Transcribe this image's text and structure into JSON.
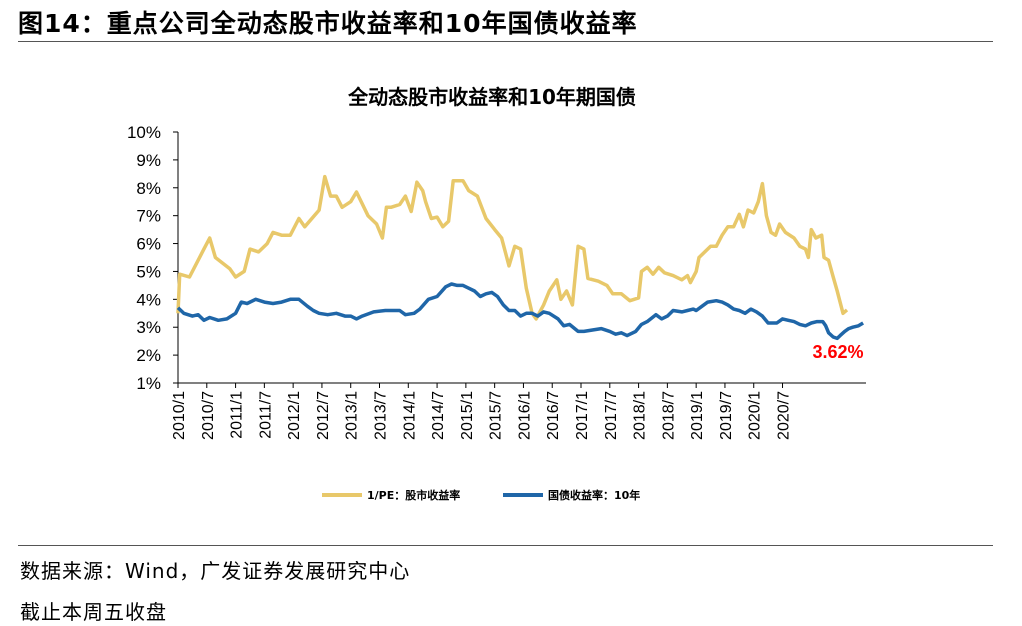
{
  "header": {
    "figure_title": "图14：重点公司全动态股市收益率和10年国债收益率"
  },
  "footer": {
    "source": "数据来源：Wind，广发证券发展研究中心",
    "note": "截止本周五收盘"
  },
  "chart_data": {
    "type": "line",
    "title": "全动态股市收益率和10年期国债",
    "ylim": [
      1,
      10
    ],
    "y_ticks": [
      "10%",
      "9%",
      "8%",
      "7%",
      "6%",
      "5%",
      "4%",
      "3%",
      "2%",
      "1%"
    ],
    "x_ticks": [
      "2010/1",
      "2010/7",
      "2011/1",
      "2011/7",
      "2012/1",
      "2012/7",
      "2013/1",
      "2013/7",
      "2014/1",
      "2014/7",
      "2015/1",
      "2015/7",
      "2016/1",
      "2016/7",
      "2017/1",
      "2017/7",
      "2018/1",
      "2018/7",
      "2019/1",
      "2019/7",
      "2020/1",
      "2020/7"
    ],
    "legend_position": "bottom",
    "annotation": {
      "text": "3.62%",
      "color": "#ff0000"
    },
    "series": [
      {
        "name": "1/PE：股市收益率",
        "color": "#e8c86a",
        "points": [
          [
            2010.0,
            3.5
          ],
          [
            2010.03,
            4.9
          ],
          [
            2010.2,
            4.8
          ],
          [
            2010.45,
            5.8
          ],
          [
            2010.55,
            6.2
          ],
          [
            2010.65,
            5.5
          ],
          [
            2010.9,
            5.1
          ],
          [
            2011.0,
            4.8
          ],
          [
            2011.15,
            5.0
          ],
          [
            2011.25,
            5.8
          ],
          [
            2011.4,
            5.7
          ],
          [
            2011.55,
            6.0
          ],
          [
            2011.65,
            6.4
          ],
          [
            2011.8,
            6.3
          ],
          [
            2011.95,
            6.3
          ],
          [
            2012.1,
            6.9
          ],
          [
            2012.2,
            6.6
          ],
          [
            2012.45,
            7.2
          ],
          [
            2012.55,
            8.4
          ],
          [
            2012.65,
            7.7
          ],
          [
            2012.75,
            7.7
          ],
          [
            2012.85,
            7.3
          ],
          [
            2013.0,
            7.5
          ],
          [
            2013.1,
            7.85
          ],
          [
            2013.3,
            7.0
          ],
          [
            2013.45,
            6.7
          ],
          [
            2013.55,
            6.2
          ],
          [
            2013.62,
            7.3
          ],
          [
            2013.7,
            7.3
          ],
          [
            2013.85,
            7.4
          ],
          [
            2013.95,
            7.7
          ],
          [
            2014.05,
            7.15
          ],
          [
            2014.15,
            8.2
          ],
          [
            2014.25,
            7.9
          ],
          [
            2014.3,
            7.5
          ],
          [
            2014.4,
            6.9
          ],
          [
            2014.5,
            6.95
          ],
          [
            2014.6,
            6.6
          ],
          [
            2014.7,
            6.8
          ],
          [
            2014.78,
            8.25
          ],
          [
            2014.95,
            8.25
          ],
          [
            2015.05,
            7.9
          ],
          [
            2015.2,
            7.7
          ],
          [
            2015.35,
            6.9
          ],
          [
            2015.5,
            6.5
          ],
          [
            2015.62,
            6.2
          ],
          [
            2015.75,
            5.2
          ],
          [
            2015.85,
            5.9
          ],
          [
            2015.95,
            5.8
          ],
          [
            2016.05,
            4.4
          ],
          [
            2016.15,
            3.5
          ],
          [
            2016.22,
            3.3
          ],
          [
            2016.35,
            3.8
          ],
          [
            2016.45,
            4.3
          ],
          [
            2016.58,
            4.7
          ],
          [
            2016.65,
            4.0
          ],
          [
            2016.75,
            4.3
          ],
          [
            2016.85,
            3.8
          ],
          [
            2016.95,
            5.9
          ],
          [
            2017.05,
            5.8
          ],
          [
            2017.12,
            4.75
          ],
          [
            2017.3,
            4.65
          ],
          [
            2017.45,
            4.5
          ],
          [
            2017.55,
            4.2
          ],
          [
            2017.7,
            4.2
          ],
          [
            2017.85,
            3.95
          ],
          [
            2018.0,
            4.05
          ],
          [
            2018.05,
            5.0
          ],
          [
            2018.15,
            5.15
          ],
          [
            2018.25,
            4.9
          ],
          [
            2018.35,
            5.15
          ],
          [
            2018.45,
            4.95
          ],
          [
            2018.6,
            4.85
          ],
          [
            2018.75,
            4.7
          ],
          [
            2018.85,
            4.85
          ],
          [
            2018.9,
            4.6
          ],
          [
            2019.0,
            5.0
          ],
          [
            2019.05,
            5.5
          ],
          [
            2019.25,
            5.9
          ],
          [
            2019.35,
            5.9
          ],
          [
            2019.45,
            6.3
          ],
          [
            2019.55,
            6.6
          ],
          [
            2019.65,
            6.6
          ],
          [
            2019.75,
            7.05
          ],
          [
            2019.82,
            6.6
          ],
          [
            2019.9,
            7.2
          ],
          [
            2020.0,
            7.1
          ],
          [
            2020.08,
            7.5
          ],
          [
            2020.15,
            8.15
          ],
          [
            2020.22,
            7.0
          ],
          [
            2020.3,
            6.4
          ],
          [
            2020.38,
            6.3
          ],
          [
            2020.45,
            6.7
          ],
          [
            2020.55,
            6.4
          ],
          [
            2020.7,
            6.2
          ],
          [
            2020.8,
            5.9
          ],
          [
            2020.9,
            5.8
          ],
          [
            2020.95,
            5.5
          ],
          [
            2021.0,
            6.5
          ],
          [
            2021.08,
            6.2
          ],
          [
            2021.18,
            6.3
          ],
          [
            2021.22,
            5.5
          ],
          [
            2021.3,
            5.4
          ],
          [
            2021.38,
            4.8
          ],
          [
            2021.45,
            4.3
          ],
          [
            2021.55,
            3.5
          ],
          [
            2021.62,
            3.62
          ]
        ]
      },
      {
        "name": "国债收益率：10年",
        "color": "#1f66a8",
        "points": [
          [
            2010.0,
            3.7
          ],
          [
            2010.1,
            3.5
          ],
          [
            2010.25,
            3.4
          ],
          [
            2010.35,
            3.45
          ],
          [
            2010.45,
            3.25
          ],
          [
            2010.55,
            3.35
          ],
          [
            2010.7,
            3.25
          ],
          [
            2010.85,
            3.3
          ],
          [
            2011.0,
            3.5
          ],
          [
            2011.1,
            3.9
          ],
          [
            2011.2,
            3.85
          ],
          [
            2011.35,
            4.0
          ],
          [
            2011.5,
            3.9
          ],
          [
            2011.65,
            3.85
          ],
          [
            2011.8,
            3.9
          ],
          [
            2011.95,
            4.0
          ],
          [
            2012.1,
            4.0
          ],
          [
            2012.25,
            3.75
          ],
          [
            2012.35,
            3.6
          ],
          [
            2012.45,
            3.5
          ],
          [
            2012.6,
            3.45
          ],
          [
            2012.75,
            3.5
          ],
          [
            2012.9,
            3.4
          ],
          [
            2013.0,
            3.4
          ],
          [
            2013.1,
            3.3
          ],
          [
            2013.2,
            3.4
          ],
          [
            2013.4,
            3.55
          ],
          [
            2013.6,
            3.6
          ],
          [
            2013.85,
            3.6
          ],
          [
            2013.95,
            3.45
          ],
          [
            2014.1,
            3.5
          ],
          [
            2014.2,
            3.65
          ],
          [
            2014.35,
            4.0
          ],
          [
            2014.5,
            4.1
          ],
          [
            2014.65,
            4.45
          ],
          [
            2014.75,
            4.55
          ],
          [
            2014.85,
            4.5
          ],
          [
            2014.95,
            4.5
          ],
          [
            2015.05,
            4.4
          ],
          [
            2015.15,
            4.3
          ],
          [
            2015.25,
            4.1
          ],
          [
            2015.35,
            4.2
          ],
          [
            2015.45,
            4.25
          ],
          [
            2015.55,
            4.1
          ],
          [
            2015.65,
            3.8
          ],
          [
            2015.75,
            3.6
          ],
          [
            2015.85,
            3.6
          ],
          [
            2015.95,
            3.4
          ],
          [
            2016.05,
            3.5
          ],
          [
            2016.15,
            3.5
          ],
          [
            2016.25,
            3.4
          ],
          [
            2016.35,
            3.55
          ],
          [
            2016.45,
            3.5
          ],
          [
            2016.6,
            3.3
          ],
          [
            2016.7,
            3.05
          ],
          [
            2016.8,
            3.1
          ],
          [
            2016.95,
            2.85
          ],
          [
            2017.05,
            2.85
          ],
          [
            2017.2,
            2.9
          ],
          [
            2017.35,
            2.95
          ],
          [
            2017.5,
            2.85
          ],
          [
            2017.6,
            2.75
          ],
          [
            2017.7,
            2.8
          ],
          [
            2017.8,
            2.7
          ],
          [
            2017.95,
            2.85
          ],
          [
            2018.05,
            3.1
          ],
          [
            2018.15,
            3.2
          ],
          [
            2018.3,
            3.45
          ],
          [
            2018.4,
            3.3
          ],
          [
            2018.5,
            3.4
          ],
          [
            2018.6,
            3.6
          ],
          [
            2018.75,
            3.55
          ],
          [
            2018.85,
            3.6
          ],
          [
            2018.95,
            3.65
          ],
          [
            2019.0,
            3.6
          ],
          [
            2019.1,
            3.75
          ],
          [
            2019.2,
            3.9
          ],
          [
            2019.35,
            3.95
          ],
          [
            2019.45,
            3.9
          ],
          [
            2019.55,
            3.8
          ],
          [
            2019.65,
            3.65
          ],
          [
            2019.75,
            3.6
          ],
          [
            2019.85,
            3.5
          ],
          [
            2019.95,
            3.65
          ],
          [
            2020.05,
            3.55
          ],
          [
            2020.15,
            3.4
          ],
          [
            2020.25,
            3.15
          ],
          [
            2020.4,
            3.15
          ],
          [
            2020.5,
            3.3
          ],
          [
            2020.6,
            3.25
          ],
          [
            2020.7,
            3.2
          ],
          [
            2020.8,
            3.1
          ],
          [
            2020.9,
            3.05
          ],
          [
            2021.0,
            3.15
          ],
          [
            2021.1,
            3.2
          ],
          [
            2021.2,
            3.2
          ],
          [
            2021.25,
            3.05
          ],
          [
            2021.3,
            2.8
          ],
          [
            2021.38,
            2.65
          ],
          [
            2021.45,
            2.6
          ],
          [
            2021.5,
            2.7
          ],
          [
            2021.58,
            2.85
          ],
          [
            2021.65,
            2.95
          ],
          [
            2021.72,
            3.0
          ],
          [
            2021.82,
            3.05
          ],
          [
            2021.9,
            3.15
          ]
        ]
      }
    ]
  }
}
